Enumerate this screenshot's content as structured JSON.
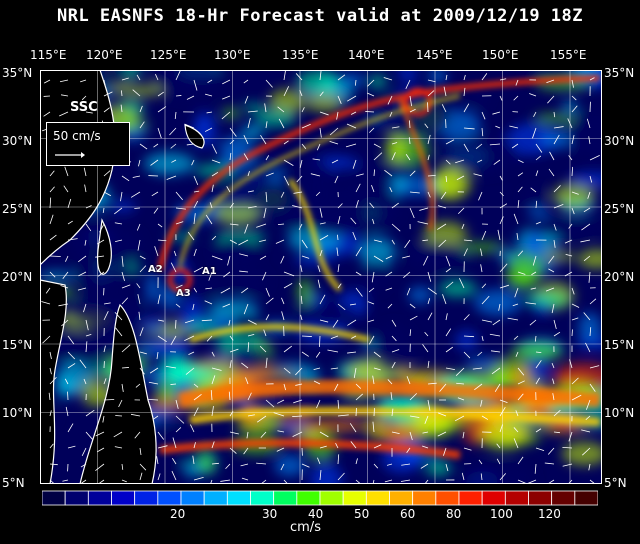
{
  "title": "NRL EASNFS  18-Hr Forecast valid at 2009/12/19 18Z",
  "lon_labels": [
    "115°E",
    "120°E",
    "125°E",
    "130°E",
    "135°E",
    "140°E",
    "145°E",
    "150°E",
    "155°E"
  ],
  "lat_labels": [
    "35°N",
    "30°N",
    "25°N",
    "20°N",
    "15°N",
    "10°N",
    "5°N"
  ],
  "variable_label": "SSC",
  "scale_label": "50 cm/s",
  "annotations": [
    "A2",
    "A1",
    "A3"
  ],
  "colorbar": {
    "unit": "cm/s",
    "ticks": [
      "20",
      "30",
      "40",
      "50",
      "60",
      "80",
      "100",
      "120"
    ],
    "colors": [
      "#000044",
      "#00006e",
      "#00009a",
      "#0000c8",
      "#0022e6",
      "#0050ff",
      "#0080ff",
      "#00b0ff",
      "#00e0ff",
      "#00ffc8",
      "#00ff60",
      "#40ff00",
      "#a0ff00",
      "#e6ff00",
      "#ffe000",
      "#ffb000",
      "#ff8000",
      "#ff5000",
      "#ff2000",
      "#e00000",
      "#b40000",
      "#8c0000",
      "#640000",
      "#440000"
    ]
  },
  "colors": {
    "background": "#000000",
    "land": "#ffffff",
    "grid": "#ffffff"
  }
}
